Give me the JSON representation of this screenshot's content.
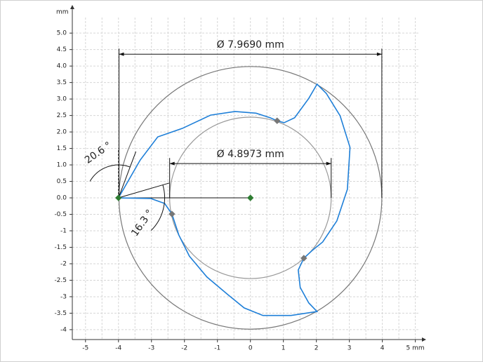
{
  "chart_data": {
    "type": "profile",
    "x_unit": "mm",
    "y_unit": "mm",
    "xlim": [
      -5.4,
      5.2
    ],
    "ylim": [
      -4.3,
      5.6
    ],
    "xticks": [
      -5,
      -4,
      -3,
      -2,
      -1,
      0,
      1,
      2,
      3,
      4,
      {
        "value": 5,
        "label": "5 mm"
      }
    ],
    "yticks": [
      {
        "value": 5,
        "label": "5.0"
      },
      4.5,
      {
        "value": 4,
        "label": "4.0"
      },
      3.5,
      {
        "value": 3,
        "label": "3.0"
      },
      2.5,
      {
        "value": 2,
        "label": "2.0"
      },
      1.5,
      {
        "value": 1,
        "label": "1.0"
      },
      0.5,
      {
        "value": 0,
        "label": "0.0"
      },
      -0.5,
      -1,
      -1.5,
      -2,
      -2.5,
      -3,
      -3.5,
      -4
    ],
    "grid": true,
    "circles": [
      {
        "diameter": 7.969,
        "label": "Ø 7.9690 mm",
        "color": "#777777"
      },
      {
        "diameter": 4.8973,
        "label": "Ø 4.8973 mm",
        "color": "#999999"
      }
    ],
    "series": [
      {
        "color": "#1e7fd8",
        "x": [
          -4,
          -3.34,
          -2.81,
          -2.06,
          -1.21,
          -0.47,
          0.17,
          0.6,
          0.81,
          1.02,
          1.34,
          1.77,
          2.02,
          2.3,
          2.72,
          3.02,
          2.94,
          2.62,
          2.19,
          1.87,
          1.62,
          1.45,
          1.51,
          1.77,
          2.02,
          1.23,
          0.38,
          -0.19,
          -0.68,
          -1.32,
          -1.85,
          -2.17,
          -2.38,
          -2.6,
          -3.02,
          -4
        ],
        "values": [
          0,
          1.15,
          1.85,
          2.11,
          2.51,
          2.62,
          2.57,
          2.43,
          2.34,
          2.28,
          2.43,
          3.02,
          3.45,
          3.17,
          2.49,
          1.53,
          0.26,
          -0.7,
          -1.34,
          -1.6,
          -1.83,
          -2.19,
          -2.72,
          -3.19,
          -3.45,
          -3.57,
          -3.57,
          -3.34,
          -2.94,
          -2.4,
          -1.77,
          -1.13,
          -0.49,
          -0.17,
          -0.02,
          0
        ]
      }
    ],
    "points": {
      "x": [
        0,
        -4,
        0.81,
        1.62,
        -2.38
      ],
      "values": [
        0,
        0,
        2.34,
        -1.83,
        -0.49
      ],
      "colors": [
        "#2e7d32",
        "#2e7d32",
        "#777777",
        "#777777",
        "#777777"
      ]
    },
    "angles": [
      {
        "value": 20.6,
        "label": "20.6 °"
      },
      {
        "value": 16.3,
        "label": "16.3 °"
      }
    ]
  }
}
